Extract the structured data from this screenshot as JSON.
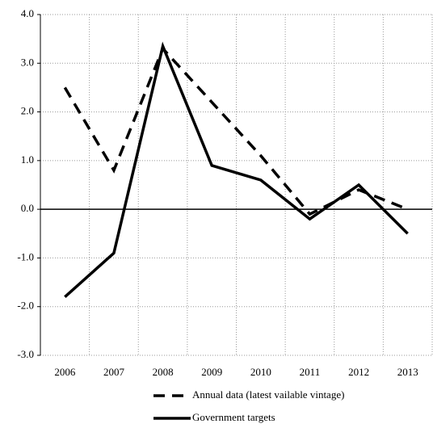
{
  "chart_data": {
    "type": "line",
    "categories": [
      "2006",
      "2007",
      "2008",
      "2009",
      "2010",
      "2011",
      "2012",
      "2013"
    ],
    "series": [
      {
        "name": "Annual data (latest vailable vintage)",
        "color": "#000000",
        "style": "dashed",
        "values": [
          2.5,
          0.8,
          3.3,
          2.2,
          1.1,
          -0.1,
          0.4,
          0.0
        ]
      },
      {
        "name": "Government targets",
        "color": "#000000",
        "style": "solid",
        "values": [
          -1.8,
          -0.9,
          3.35,
          0.9,
          0.6,
          -0.2,
          0.5,
          -0.5
        ]
      }
    ],
    "ylim": [
      -3,
      4
    ],
    "yticks": [
      {
        "value": -3,
        "label": "-3.0"
      },
      {
        "value": -2,
        "label": "-2.0"
      },
      {
        "value": -1,
        "label": "-1.0"
      },
      {
        "value": 0,
        "label": "0.0"
      },
      {
        "value": 1,
        "label": "1.0"
      },
      {
        "value": 2,
        "label": "2.0"
      },
      {
        "value": 3,
        "label": "3.0"
      },
      {
        "value": 4,
        "label": "4.0"
      }
    ],
    "grid": true,
    "legend": "bottom"
  }
}
